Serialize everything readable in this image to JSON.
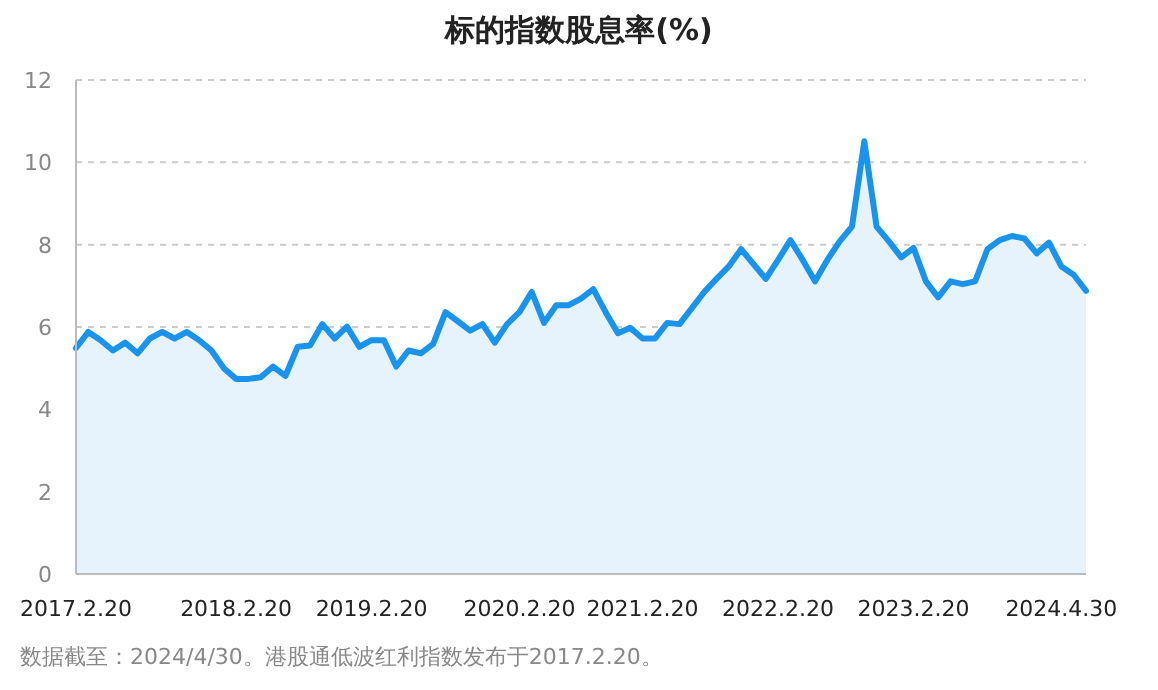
{
  "chart_data": {
    "type": "area",
    "title": "标的指数股息率(%)",
    "categories": [
      "2017.2.20",
      null,
      null,
      null,
      null,
      null,
      null,
      null,
      null,
      null,
      null,
      null,
      null,
      "2018.2.20",
      null,
      null,
      null,
      null,
      null,
      null,
      null,
      null,
      null,
      null,
      "2019.2.20",
      null,
      null,
      null,
      null,
      null,
      null,
      null,
      null,
      null,
      null,
      null,
      "2020.2.20",
      null,
      null,
      null,
      null,
      null,
      null,
      null,
      null,
      null,
      "2021.2.20",
      null,
      null,
      null,
      null,
      null,
      null,
      null,
      null,
      null,
      null,
      "2022.2.20",
      null,
      null,
      null,
      null,
      null,
      null,
      null,
      null,
      null,
      null,
      "2023.2.20",
      null,
      null,
      null,
      null,
      null,
      null,
      null,
      null,
      null,
      null,
      null,
      "2024.4.30",
      null,
      null
    ],
    "values": [
      5.49,
      5.88,
      5.68,
      5.43,
      5.62,
      5.36,
      5.72,
      5.88,
      5.72,
      5.88,
      5.68,
      5.43,
      5.0,
      4.74,
      4.74,
      4.78,
      5.04,
      4.81,
      5.52,
      5.55,
      6.07,
      5.72,
      6.01,
      5.52,
      5.68,
      5.68,
      5.04,
      5.43,
      5.36,
      5.59,
      6.36,
      6.14,
      5.91,
      6.07,
      5.62,
      6.07,
      6.36,
      6.85,
      6.1,
      6.53,
      6.53,
      6.69,
      6.92,
      6.36,
      5.85,
      5.98,
      5.72,
      5.72,
      6.1,
      6.07,
      6.46,
      6.85,
      7.17,
      7.47,
      7.89,
      7.53,
      7.17,
      7.63,
      8.11,
      7.63,
      7.11,
      7.63,
      8.08,
      8.44,
      10.51,
      8.44,
      8.08,
      7.69,
      7.92,
      7.11,
      6.72,
      7.11,
      7.04,
      7.11,
      7.89,
      8.11,
      8.21,
      8.15,
      7.79,
      8.05,
      7.47,
      7.27,
      6.88
    ],
    "color": "#1a93ec",
    "ylim": [
      0,
      12
    ],
    "yticks": [
      0,
      2,
      4,
      6,
      8,
      10,
      12
    ],
    "grid": "y",
    "annotations": [
      "数据截至：2024/4/30。港股通低波红利指数发布于2017.2.20。"
    ]
  }
}
